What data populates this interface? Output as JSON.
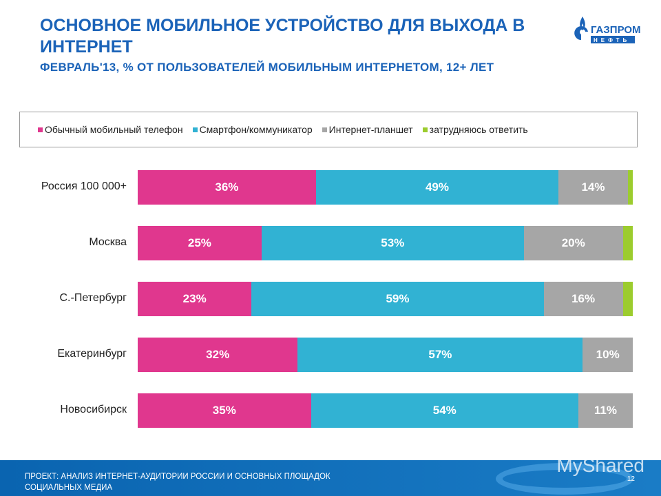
{
  "header": {
    "title": "ОСНОВНОЕ МОБИЛЬНОЕ УСТРОЙСТВО ДЛЯ ВЫХОДА В ИНТЕРНЕТ",
    "subtitle": "ФЕВРАЛЬ'13, % ОТ ПОЛЬЗОВАТЕЛЕЙ МОБИЛЬНЫМ ИНТЕРНЕТОМ, 12+ ЛЕТ",
    "logo_text": "ГАЗПРОМ НЕФТЬ"
  },
  "chart_data": {
    "type": "bar",
    "orientation": "horizontal",
    "stacked": true,
    "title": "ОСНОВНОЕ МОБИЛЬНОЕ УСТРОЙСТВО ДЛЯ ВЫХОДА В ИНТЕРНЕТ",
    "legend_position": "top",
    "grid": false,
    "categories": [
      "Россия 100 000+",
      "Москва",
      "С.-Петербург",
      "Екатеринбург",
      "Новосибирск"
    ],
    "series": [
      {
        "name": "Обычный мобильный телефон",
        "color": "#e0378e",
        "values": [
          36,
          25,
          23,
          32,
          35
        ],
        "labels": [
          "36%",
          "25%",
          "23%",
          "32%",
          "35%"
        ]
      },
      {
        "name": "Смартфон/коммуникатор",
        "color": "#31b2d3",
        "values": [
          49,
          53,
          59,
          57,
          54
        ],
        "labels": [
          "49%",
          "53%",
          "59%",
          "57%",
          "54%"
        ]
      },
      {
        "name": "Интернет-планшет",
        "color": "#a6a6a6",
        "values": [
          14,
          20,
          16,
          10,
          11
        ],
        "labels": [
          "14%",
          "20%",
          "16%",
          "10%",
          "11%"
        ]
      },
      {
        "name": "затрудняюсь ответить",
        "color": "#9ccc2e",
        "values": [
          1,
          2,
          2,
          0,
          0
        ],
        "labels": [
          "",
          "",
          "",
          "",
          ""
        ]
      }
    ]
  },
  "footer": {
    "project_line1": "ПРОЕКТ: АНАЛИЗ ИНТЕРНЕТ-АУДИТОРИИ РОССИИ И ОСНОВНЫХ ПЛОЩАДОК",
    "project_line2": "СОЦИАЛЬНЫХ МЕДИА",
    "page_number": "12",
    "watermark": "MyShared"
  }
}
